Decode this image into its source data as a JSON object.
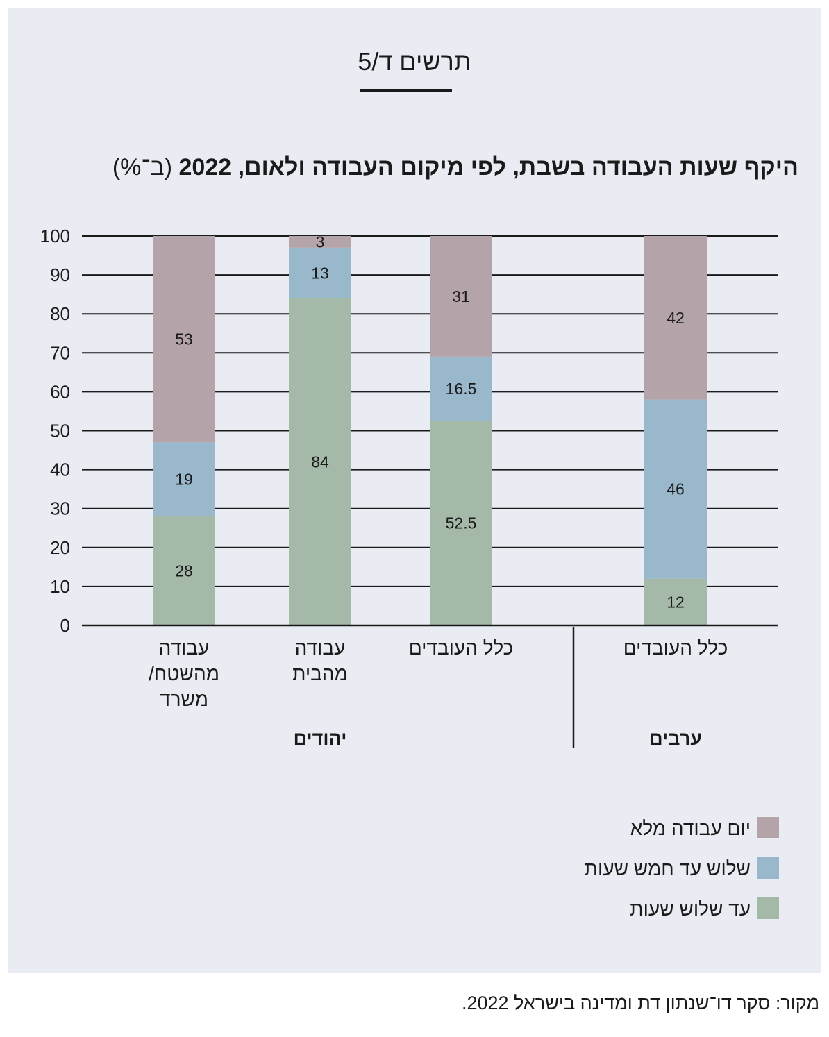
{
  "figure_label": "תרשים ד/5",
  "source": "מקור: סקר דו־שנתון דת ומדינה בישראל 2022.",
  "colors": {
    "full_day": "#b4a4aa",
    "three_to_five": "#9ab8cb",
    "up_to_three": "#a4b9a8",
    "background": "#e9edf3",
    "text": "#1a1a1a"
  },
  "chart_data": {
    "type": "bar",
    "stacked": true,
    "title": "היקף שעות העבודה בשבת, לפי מיקום העבודה ולאום, 2022",
    "title_unit": "(ב־%)",
    "ylim": [
      0,
      100
    ],
    "yticks": [
      "0",
      "10",
      "20",
      "30",
      "40",
      "50",
      "60",
      "70",
      "80",
      "90",
      "100"
    ],
    "grid": true,
    "legend_position": "bottom-right",
    "categories": [
      {
        "lines": [
          "עבודה",
          "מהשטח/",
          "משרד"
        ],
        "group": "יהודים"
      },
      {
        "lines": [
          "עבודה",
          "מהבית"
        ],
        "group": "יהודים"
      },
      {
        "lines": [
          "כלל העובדים"
        ],
        "group": "יהודים"
      },
      {
        "lines": [
          "כלל העובדים"
        ],
        "group": "ערבים"
      }
    ],
    "groups": [
      "יהודים",
      "ערבים"
    ],
    "series": [
      {
        "name": "עד שלוש שעות",
        "key": "up_to_three",
        "values": [
          28,
          84,
          52.5,
          12
        ],
        "labels": [
          "28",
          "84",
          "52.5",
          "12"
        ]
      },
      {
        "name": "שלוש עד חמש שעות",
        "key": "three_to_five",
        "values": [
          19,
          13,
          16.5,
          46
        ],
        "labels": [
          "19",
          "13",
          "16.5",
          "46"
        ]
      },
      {
        "name": "יום עבודה מלא",
        "key": "full_day",
        "values": [
          53,
          3,
          31,
          42
        ],
        "labels": [
          "53",
          "3",
          "31",
          "42"
        ]
      }
    ],
    "legend_order": [
      "full_day",
      "three_to_five",
      "up_to_three"
    ]
  }
}
